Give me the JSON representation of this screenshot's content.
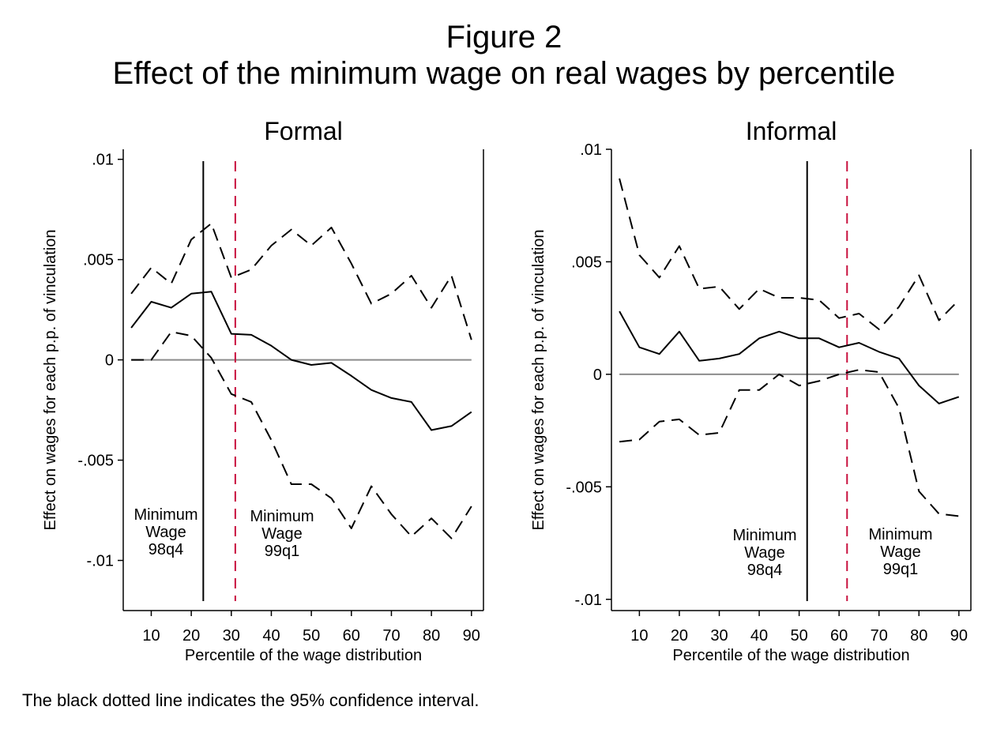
{
  "figure": {
    "title": "Figure 2",
    "subtitle": "Effect of the minimum wage on real wages by percentile",
    "footnote": "The black dotted line indicates the 95% confidence interval."
  },
  "colors": {
    "estimate": "#000000",
    "ci": "#000000",
    "zero": "#8c8c8c",
    "mw_98q4": "#000000",
    "mw_99q1": "#c8103e"
  },
  "chart_data": [
    {
      "type": "line",
      "panel": "Formal",
      "title": "Formal",
      "xlabel": "Percentile of the wage distribution",
      "ylabel": "Effect on wages for each p.p. of vinculation",
      "xlim": [
        3,
        93
      ],
      "ylim": [
        -0.0125,
        0.0105
      ],
      "xticks": [
        10,
        20,
        30,
        40,
        50,
        60,
        70,
        80,
        90
      ],
      "yticks": [
        0.01,
        0.005,
        0,
        -0.005,
        -0.01
      ],
      "ytick_labels": [
        ".01",
        ".005",
        "0",
        "-.005",
        "-.01"
      ],
      "x": [
        5,
        10,
        15,
        20,
        25,
        30,
        35,
        40,
        45,
        50,
        55,
        60,
        65,
        70,
        75,
        80,
        85,
        90
      ],
      "series": [
        {
          "role": "estimate",
          "values": [
            0.0016,
            0.0029,
            0.0026,
            0.0033,
            0.0034,
            0.0013,
            0.00125,
            0.0007,
            0.0,
            -0.00025,
            -0.00015,
            -0.0008,
            -0.0015,
            -0.0019,
            -0.0021,
            -0.0035,
            -0.0033,
            -0.0026
          ]
        },
        {
          "role": "ci_upper",
          "values": [
            0.0033,
            0.0046,
            0.0038,
            0.006,
            0.0068,
            0.0041,
            0.0045,
            0.0057,
            0.0065,
            0.0057,
            0.0066,
            0.0048,
            0.0028,
            0.0033,
            0.0042,
            0.0026,
            0.0042,
            0.001
          ]
        },
        {
          "role": "ci_lower",
          "values": [
            0.0,
            0.0,
            0.0014,
            0.0012,
            0.0001,
            -0.0017,
            -0.0021,
            -0.004,
            -0.0062,
            -0.0062,
            -0.0069,
            -0.0084,
            -0.0063,
            -0.0077,
            -0.0088,
            -0.0079,
            -0.0089,
            -0.0073
          ]
        }
      ],
      "reference_lines": [
        {
          "label_lines": [
            "Minimum",
            "Wage",
            "98q4"
          ],
          "x": 23,
          "style": "solid",
          "color": "#000000"
        },
        {
          "label_lines": [
            "Minimum",
            "Wage",
            "99q1"
          ],
          "x": 31,
          "style": "dashed",
          "color": "#c8103e"
        }
      ],
      "zero_line": true
    },
    {
      "type": "line",
      "panel": "Informal",
      "title": "Informal",
      "xlabel": "Percentile of the wage distribution",
      "ylabel": "Effect on wages for each p.p. of vinculation",
      "xlim": [
        3,
        93
      ],
      "ylim": [
        -0.0105,
        0.01
      ],
      "xticks": [
        10,
        20,
        30,
        40,
        50,
        60,
        70,
        80,
        90
      ],
      "yticks": [
        0.01,
        0.005,
        0,
        -0.005,
        -0.01
      ],
      "ytick_labels": [
        ".01",
        ".005",
        "0",
        "-.005",
        "-.01"
      ],
      "x": [
        5,
        10,
        15,
        20,
        25,
        30,
        35,
        40,
        45,
        50,
        55,
        60,
        65,
        70,
        75,
        80,
        85,
        90
      ],
      "series": [
        {
          "role": "estimate",
          "values": [
            0.0028,
            0.0012,
            0.0009,
            0.0019,
            0.0006,
            0.0007,
            0.0009,
            0.0016,
            0.0019,
            0.0016,
            0.0016,
            0.0012,
            0.0014,
            0.001,
            0.0007,
            -0.0005,
            -0.0013,
            -0.001
          ]
        },
        {
          "role": "ci_upper",
          "values": [
            0.0087,
            0.0053,
            0.0043,
            0.0057,
            0.0038,
            0.0039,
            0.0029,
            0.0038,
            0.0034,
            0.0034,
            0.0033,
            0.0025,
            0.0027,
            0.002,
            0.003,
            0.0044,
            0.0024,
            0.0033
          ]
        },
        {
          "role": "ci_lower",
          "values": [
            -0.003,
            -0.0029,
            -0.0021,
            -0.002,
            -0.0027,
            -0.0026,
            -0.0007,
            -0.0007,
            0.0,
            -0.0005,
            -0.0003,
            0.0,
            0.0002,
            0.0001,
            -0.0015,
            -0.0052,
            -0.0062,
            -0.0063
          ]
        }
      ],
      "reference_lines": [
        {
          "label_lines": [
            "Minimum",
            "Wage",
            "98q4"
          ],
          "x": 52,
          "style": "solid",
          "color": "#000000"
        },
        {
          "label_lines": [
            "Minimum",
            "Wage",
            "99q1"
          ],
          "x": 62,
          "style": "dashed",
          "color": "#c8103e"
        }
      ],
      "zero_line": true
    }
  ]
}
